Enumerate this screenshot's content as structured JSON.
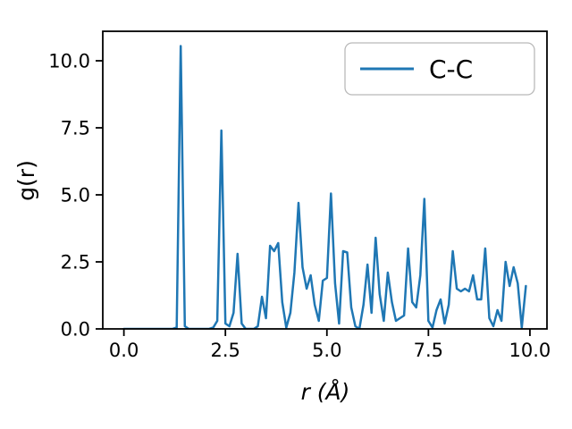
{
  "figure": {
    "background": "#ffffff"
  },
  "chart_data": {
    "type": "line",
    "title": "",
    "xlabel": "r (Å)",
    "ylabel": "g(r)",
    "xlim": [
      -0.52,
      10.42
    ],
    "ylim": [
      0,
      11.1
    ],
    "xticks": [
      0.0,
      2.5,
      5.0,
      7.5,
      10.0
    ],
    "yticks": [
      0.0,
      2.5,
      5.0,
      7.5,
      10.0
    ],
    "grid": false,
    "legend": {
      "position": "upper right",
      "entries": [
        {
          "label": "C-C",
          "color": "#1f77b4"
        }
      ]
    },
    "series": [
      {
        "name": "C-C",
        "color": "#1f77b4",
        "x": [
          0.0,
          0.1,
          0.2,
          0.3,
          0.4,
          0.5,
          0.6,
          0.7,
          0.8,
          0.9,
          1.0,
          1.1,
          1.2,
          1.3,
          1.4,
          1.5,
          1.6,
          1.7,
          1.8,
          1.9,
          2.0,
          2.1,
          2.2,
          2.3,
          2.4,
          2.5,
          2.6,
          2.7,
          2.8,
          2.9,
          3.0,
          3.1,
          3.2,
          3.3,
          3.4,
          3.5,
          3.6,
          3.7,
          3.8,
          3.9,
          4.0,
          4.1,
          4.2,
          4.3,
          4.4,
          4.5,
          4.6,
          4.7,
          4.8,
          4.9,
          5.0,
          5.1,
          5.2,
          5.3,
          5.4,
          5.5,
          5.6,
          5.7,
          5.8,
          5.9,
          6.0,
          6.1,
          6.2,
          6.3,
          6.4,
          6.5,
          6.6,
          6.7,
          6.8,
          6.9,
          7.0,
          7.1,
          7.2,
          7.3,
          7.4,
          7.5,
          7.6,
          7.7,
          7.8,
          7.9,
          8.0,
          8.1,
          8.2,
          8.3,
          8.4,
          8.5,
          8.6,
          8.7,
          8.8,
          8.9,
          9.0,
          9.1,
          9.2,
          9.3,
          9.4,
          9.5,
          9.6,
          9.7,
          9.8,
          9.9
        ],
        "y": [
          0,
          0,
          0,
          0,
          0,
          0,
          0,
          0,
          0,
          0,
          0,
          0,
          0,
          0.05,
          10.55,
          0.1,
          0,
          0,
          0,
          0,
          0,
          0,
          0.05,
          0.3,
          7.4,
          0.2,
          0.1,
          0.6,
          2.8,
          0.2,
          0,
          0,
          0,
          0.1,
          1.2,
          0.4,
          3.1,
          2.9,
          3.2,
          1.0,
          0.05,
          0.6,
          2.1,
          4.7,
          2.3,
          1.5,
          2.0,
          0.9,
          0.3,
          1.8,
          1.9,
          5.05,
          1.7,
          0.2,
          2.9,
          2.85,
          0.8,
          0.1,
          0,
          0.9,
          2.4,
          0.6,
          3.4,
          1.3,
          0.3,
          2.1,
          1.0,
          0.3,
          0.4,
          0.5,
          3.0,
          1.0,
          0.8,
          2.0,
          4.85,
          0.3,
          0.05,
          0.7,
          1.1,
          0.2,
          0.9,
          2.9,
          1.5,
          1.4,
          1.5,
          1.4,
          2.0,
          1.1,
          1.1,
          3.0,
          0.4,
          0.1,
          0.7,
          0.3,
          2.5,
          1.6,
          2.3,
          1.7,
          0.05,
          1.6
        ]
      }
    ]
  }
}
